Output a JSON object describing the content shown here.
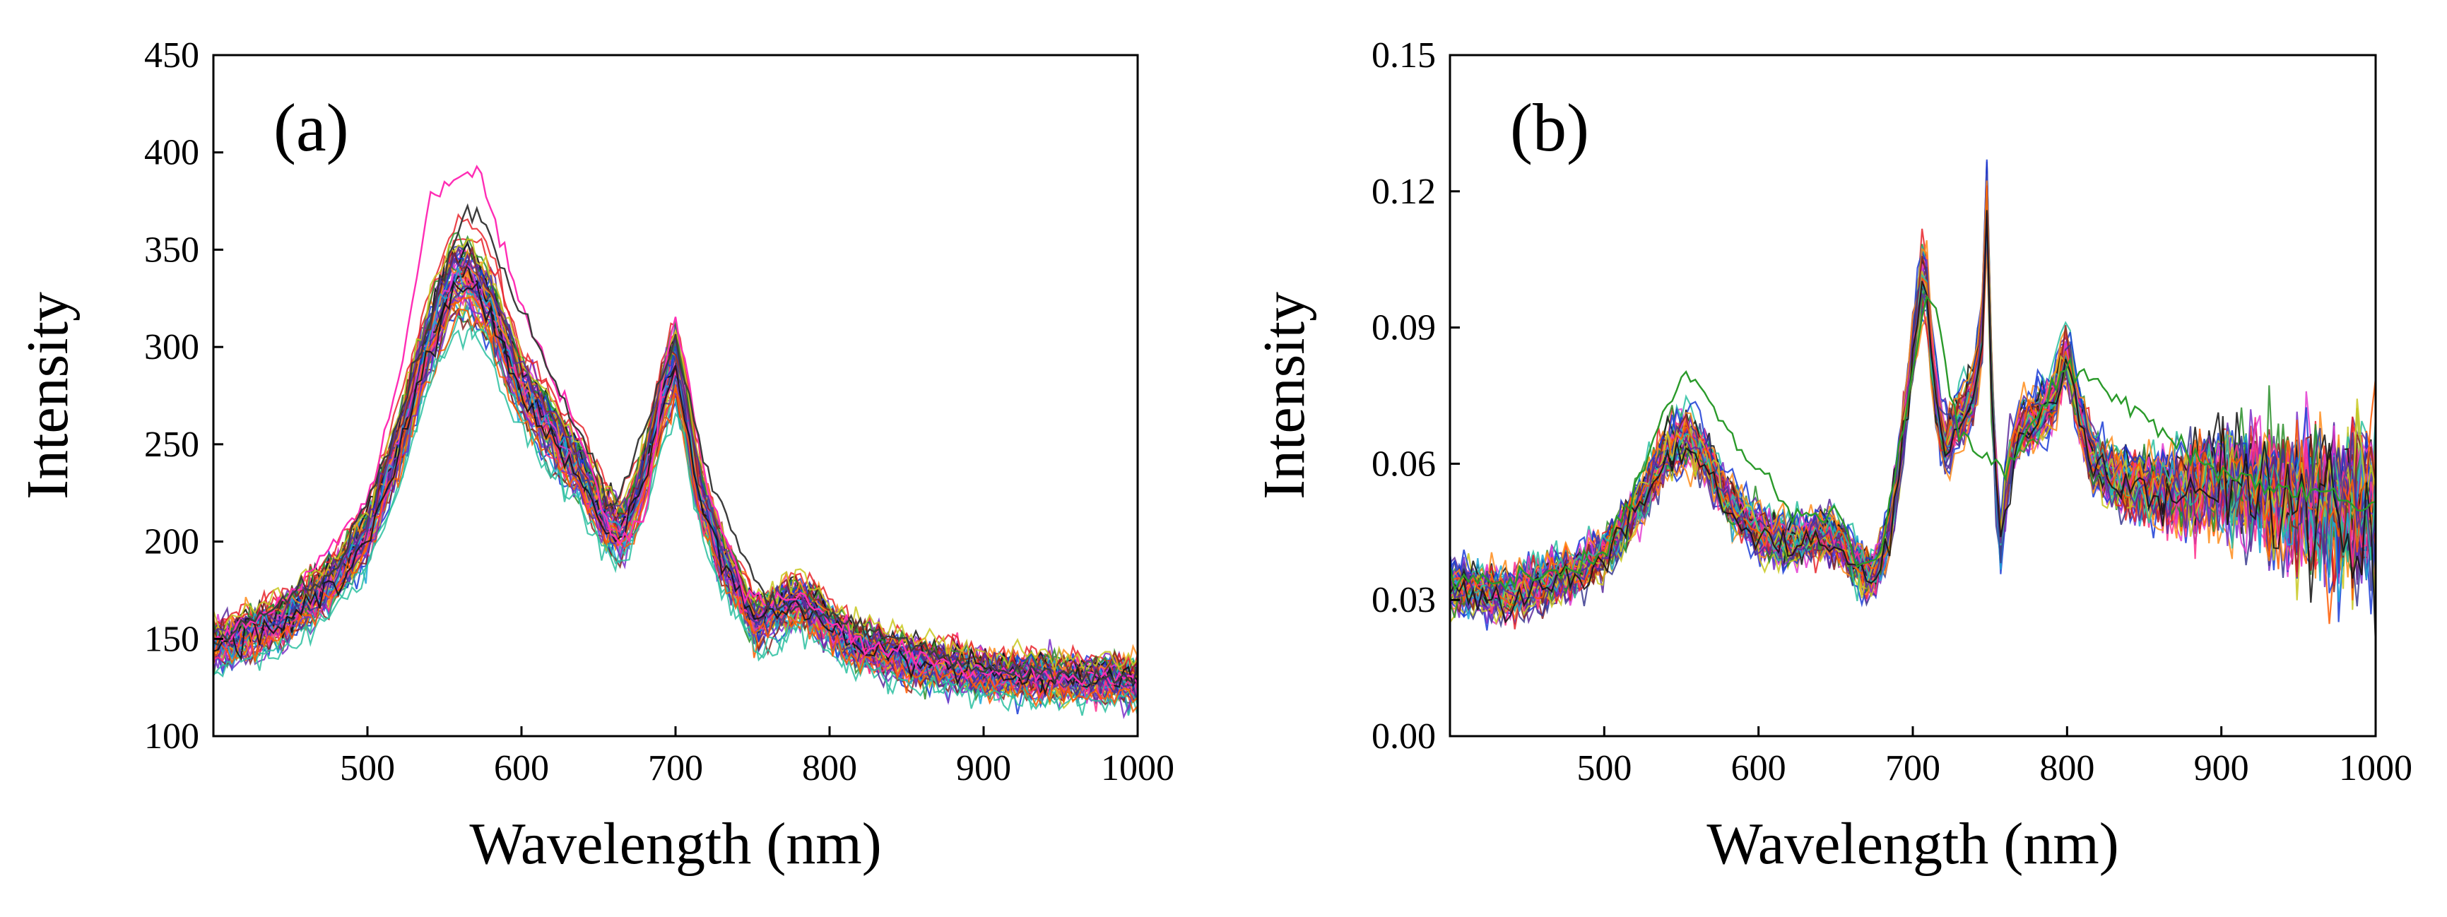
{
  "chart_data": [
    {
      "type": "line",
      "panel_label": "(a)",
      "xlabel": "Wavelength (nm)",
      "ylabel": "Intensity",
      "xlim": [
        400,
        1000
      ],
      "ylim": [
        100,
        450
      ],
      "xticks": [
        500,
        600,
        700,
        800,
        900,
        1000
      ],
      "yticks": [
        100,
        150,
        200,
        250,
        300,
        350,
        400,
        450
      ],
      "xtick_labels": [
        "500",
        "600",
        "700",
        "800",
        "900",
        "1000"
      ],
      "ytick_labels": [
        "100",
        "150",
        "200",
        "250",
        "300",
        "350",
        "400",
        "450"
      ],
      "n_series": 60,
      "noise": 4,
      "series_spread": 0.06,
      "mean_spectrum": {
        "x": [
          400,
          420,
          440,
          460,
          480,
          500,
          520,
          540,
          555,
          565,
          580,
          600,
          620,
          640,
          655,
          665,
          675,
          685,
          695,
          700,
          705,
          715,
          730,
          745,
          752,
          760,
          770,
          780,
          790,
          800,
          820,
          850,
          880,
          900,
          930,
          960,
          1000
        ],
        "y": [
          148,
          152,
          158,
          168,
          183,
          205,
          250,
          305,
          335,
          338,
          322,
          280,
          258,
          235,
          212,
          207,
          222,
          252,
          285,
          293,
          275,
          228,
          193,
          170,
          158,
          162,
          168,
          170,
          165,
          157,
          147,
          140,
          136,
          133,
          131,
          130,
          129
        ]
      },
      "outliers": [
        {
          "color": "#ff2db5",
          "x": [
            400,
            440,
            480,
            500,
            520,
            540,
            555,
            570,
            585,
            600,
            620,
            640,
            660,
            680,
            695,
            700,
            706,
            720,
            745,
            760,
            780,
            820,
            900,
            1000
          ],
          "y": [
            150,
            165,
            200,
            220,
            280,
            375,
            385,
            396,
            360,
            320,
            285,
            250,
            200,
            210,
            300,
            315,
            290,
            230,
            175,
            170,
            172,
            148,
            133,
            128
          ]
        },
        {
          "color": "#3c3c3c",
          "x": [
            400,
            480,
            520,
            550,
            565,
            575,
            590,
            610,
            640,
            660,
            690,
            700,
            720,
            760,
            800,
            900,
            1000
          ],
          "y": [
            148,
            185,
            260,
            340,
            370,
            365,
            335,
            300,
            255,
            215,
            280,
            305,
            235,
            168,
            162,
            134,
            129
          ]
        }
      ],
      "colors": [
        "#e8232a",
        "#1a3cd6",
        "#e43ad0",
        "#2a8f2a",
        "#ff8c1a",
        "#7a2ec8",
        "#1aa7d6",
        "#8b2323",
        "#ff2f8d",
        "#3a3a8f",
        "#c8c81e",
        "#2ac0a0",
        "#ff5a00",
        "#5a2a9c",
        "#111111"
      ]
    },
    {
      "type": "line",
      "panel_label": "(b)",
      "xlabel": "Wavelength (nm)",
      "ylabel": "Intensity",
      "xlim": [
        400,
        1000
      ],
      "ylim": [
        0.0,
        0.15
      ],
      "xticks": [
        500,
        600,
        700,
        800,
        900,
        1000
      ],
      "yticks": [
        0.0,
        0.03,
        0.06,
        0.09,
        0.12,
        0.15
      ],
      "xtick_labels": [
        "500",
        "600",
        "700",
        "800",
        "900",
        "1000"
      ],
      "ytick_labels": [
        "0.00",
        "0.03",
        "0.06",
        "0.09",
        "0.12",
        "0.15"
      ],
      "n_series": 60,
      "noise": 0.0022,
      "series_spread": 0.06,
      "mean_spectrum": {
        "x": [
          400,
          420,
          440,
          460,
          480,
          500,
          520,
          540,
          553,
          565,
          580,
          600,
          620,
          635,
          645,
          655,
          665,
          675,
          685,
          695,
          702,
          708,
          713,
          720,
          730,
          740,
          745,
          748,
          752,
          757,
          762,
          770,
          780,
          790,
          800,
          805,
          815,
          830,
          850,
          870,
          890,
          910,
          930,
          950,
          970,
          1000
        ],
        "y": [
          0.033,
          0.032,
          0.031,
          0.034,
          0.036,
          0.04,
          0.05,
          0.062,
          0.066,
          0.062,
          0.052,
          0.045,
          0.042,
          0.044,
          0.045,
          0.042,
          0.037,
          0.035,
          0.045,
          0.07,
          0.09,
          0.105,
          0.08,
          0.063,
          0.07,
          0.075,
          0.09,
          0.118,
          0.065,
          0.042,
          0.06,
          0.068,
          0.07,
          0.073,
          0.085,
          0.075,
          0.062,
          0.057,
          0.055,
          0.054,
          0.056,
          0.056,
          0.053,
          0.052,
          0.05,
          0.052
        ]
      },
      "outliers": [
        {
          "color": "#2a9a2a",
          "x": [
            400,
            460,
            500,
            520,
            540,
            553,
            565,
            580,
            600,
            620,
            640,
            648,
            655,
            665,
            680,
            700,
            710,
            730,
            760,
            800,
            900,
            1000
          ],
          "y": [
            0.034,
            0.035,
            0.04,
            0.055,
            0.072,
            0.08,
            0.076,
            0.066,
            0.058,
            0.05,
            0.048,
            0.05,
            0.047,
            0.037,
            0.04,
            0.08,
            0.1,
            0.066,
            0.058,
            0.082,
            0.058,
            0.05
          ]
        }
      ],
      "colors": [
        "#e8232a",
        "#1a3cd6",
        "#e43ad0",
        "#2a8f2a",
        "#ff8c1a",
        "#7a2ec8",
        "#1aa7d6",
        "#8b2323",
        "#ff2f8d",
        "#3a3a8f",
        "#c8c81e",
        "#2ac0a0",
        "#ff5a00",
        "#5a2a9c",
        "#111111"
      ]
    }
  ]
}
